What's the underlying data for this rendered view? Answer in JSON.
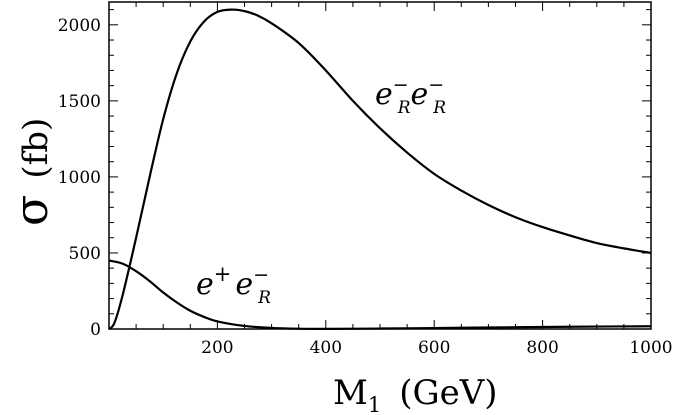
{
  "chart_data": {
    "type": "line",
    "xlabel": "M",
    "xlabel_sub": "1",
    "xlabel_unit": "(GeV)",
    "ylabel_symbol": "σ",
    "ylabel_unit": "(fb)",
    "xlim": [
      0,
      1000
    ],
    "ylim": [
      0,
      2150
    ],
    "xticks": [
      200,
      400,
      600,
      800,
      1000
    ],
    "yticks": [
      0,
      500,
      1000,
      1500,
      2000
    ],
    "grid": false,
    "series": [
      {
        "name": "e⁻R e⁻R",
        "label_parts": {
          "p1": "e",
          "s1": "−",
          "u1": "R",
          "p2": "e",
          "s2": "−",
          "u2": "R"
        },
        "x": [
          0,
          10,
          25,
          50,
          75,
          100,
          125,
          150,
          175,
          200,
          225,
          250,
          275,
          300,
          350,
          400,
          450,
          500,
          550,
          600,
          650,
          700,
          750,
          800,
          850,
          900,
          950,
          1000
        ],
        "y": [
          0,
          40,
          220,
          600,
          1000,
          1380,
          1680,
          1890,
          2020,
          2085,
          2100,
          2090,
          2060,
          2010,
          1880,
          1700,
          1500,
          1320,
          1160,
          1020,
          910,
          815,
          735,
          670,
          615,
          565,
          530,
          500
        ]
      },
      {
        "name": "e⁺ e⁻R",
        "label_parts": {
          "p1": "e",
          "s1": "+",
          "p2": "e",
          "s2": "−",
          "u2": "R"
        },
        "x": [
          0,
          25,
          50,
          75,
          100,
          125,
          150,
          175,
          200,
          250,
          300,
          350,
          400,
          500,
          600,
          700,
          800,
          900,
          1000
        ],
        "y": [
          450,
          430,
          380,
          315,
          240,
          175,
          120,
          80,
          50,
          20,
          7,
          2,
          1,
          3,
          6,
          10,
          13,
          16,
          18
        ]
      }
    ]
  }
}
